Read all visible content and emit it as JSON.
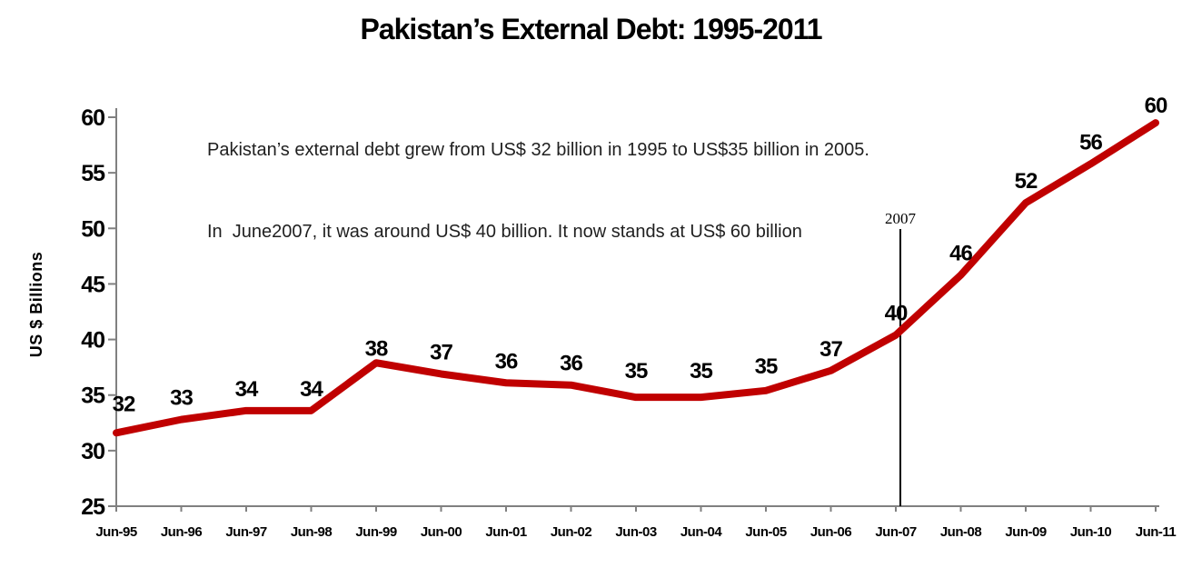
{
  "title": "Pakistan’s External Debt: 1995-2011",
  "annotation": {
    "line1": "Pakistan’s external debt grew from US$ 32 billion in 1995 to US$35 billion in 2005.",
    "line2": "In  June2007, it was around US$ 40 billion. It now stands at US$ 60 billion"
  },
  "chart_data": {
    "type": "line",
    "title": "Pakistan’s External Debt: 1995-2011",
    "categories": [
      "Jun-95",
      "Jun-96",
      "Jun-97",
      "Jun-98",
      "Jun-99",
      "Jun-00",
      "Jun-01",
      "Jun-02",
      "Jun-03",
      "Jun-04",
      "Jun-05",
      "Jun-06",
      "Jun-07",
      "Jun-08",
      "Jun-09",
      "Jun-10",
      "Jun-11"
    ],
    "values": [
      32,
      33,
      34,
      34,
      38,
      37,
      36,
      36,
      35,
      35,
      35,
      37,
      40,
      46,
      52,
      56,
      60
    ],
    "plotted_values": [
      31.6,
      32.8,
      33.6,
      33.6,
      37.9,
      36.9,
      36.1,
      35.9,
      34.8,
      34.8,
      35.4,
      37.2,
      40.4,
      45.8,
      52.3,
      55.8,
      59.5
    ],
    "xlabel": "",
    "ylabel": "US $ Billions",
    "ylim": [
      25,
      60
    ],
    "yticks": [
      25,
      30,
      35,
      40,
      45,
      50,
      55,
      60
    ],
    "grid": false,
    "legend": "none",
    "line_color": "#C00000",
    "axis_color": "#808080",
    "label_color": "#000000",
    "event_marker": {
      "label": "2007",
      "category": "Jun-07",
      "line_color": "#000000"
    }
  }
}
